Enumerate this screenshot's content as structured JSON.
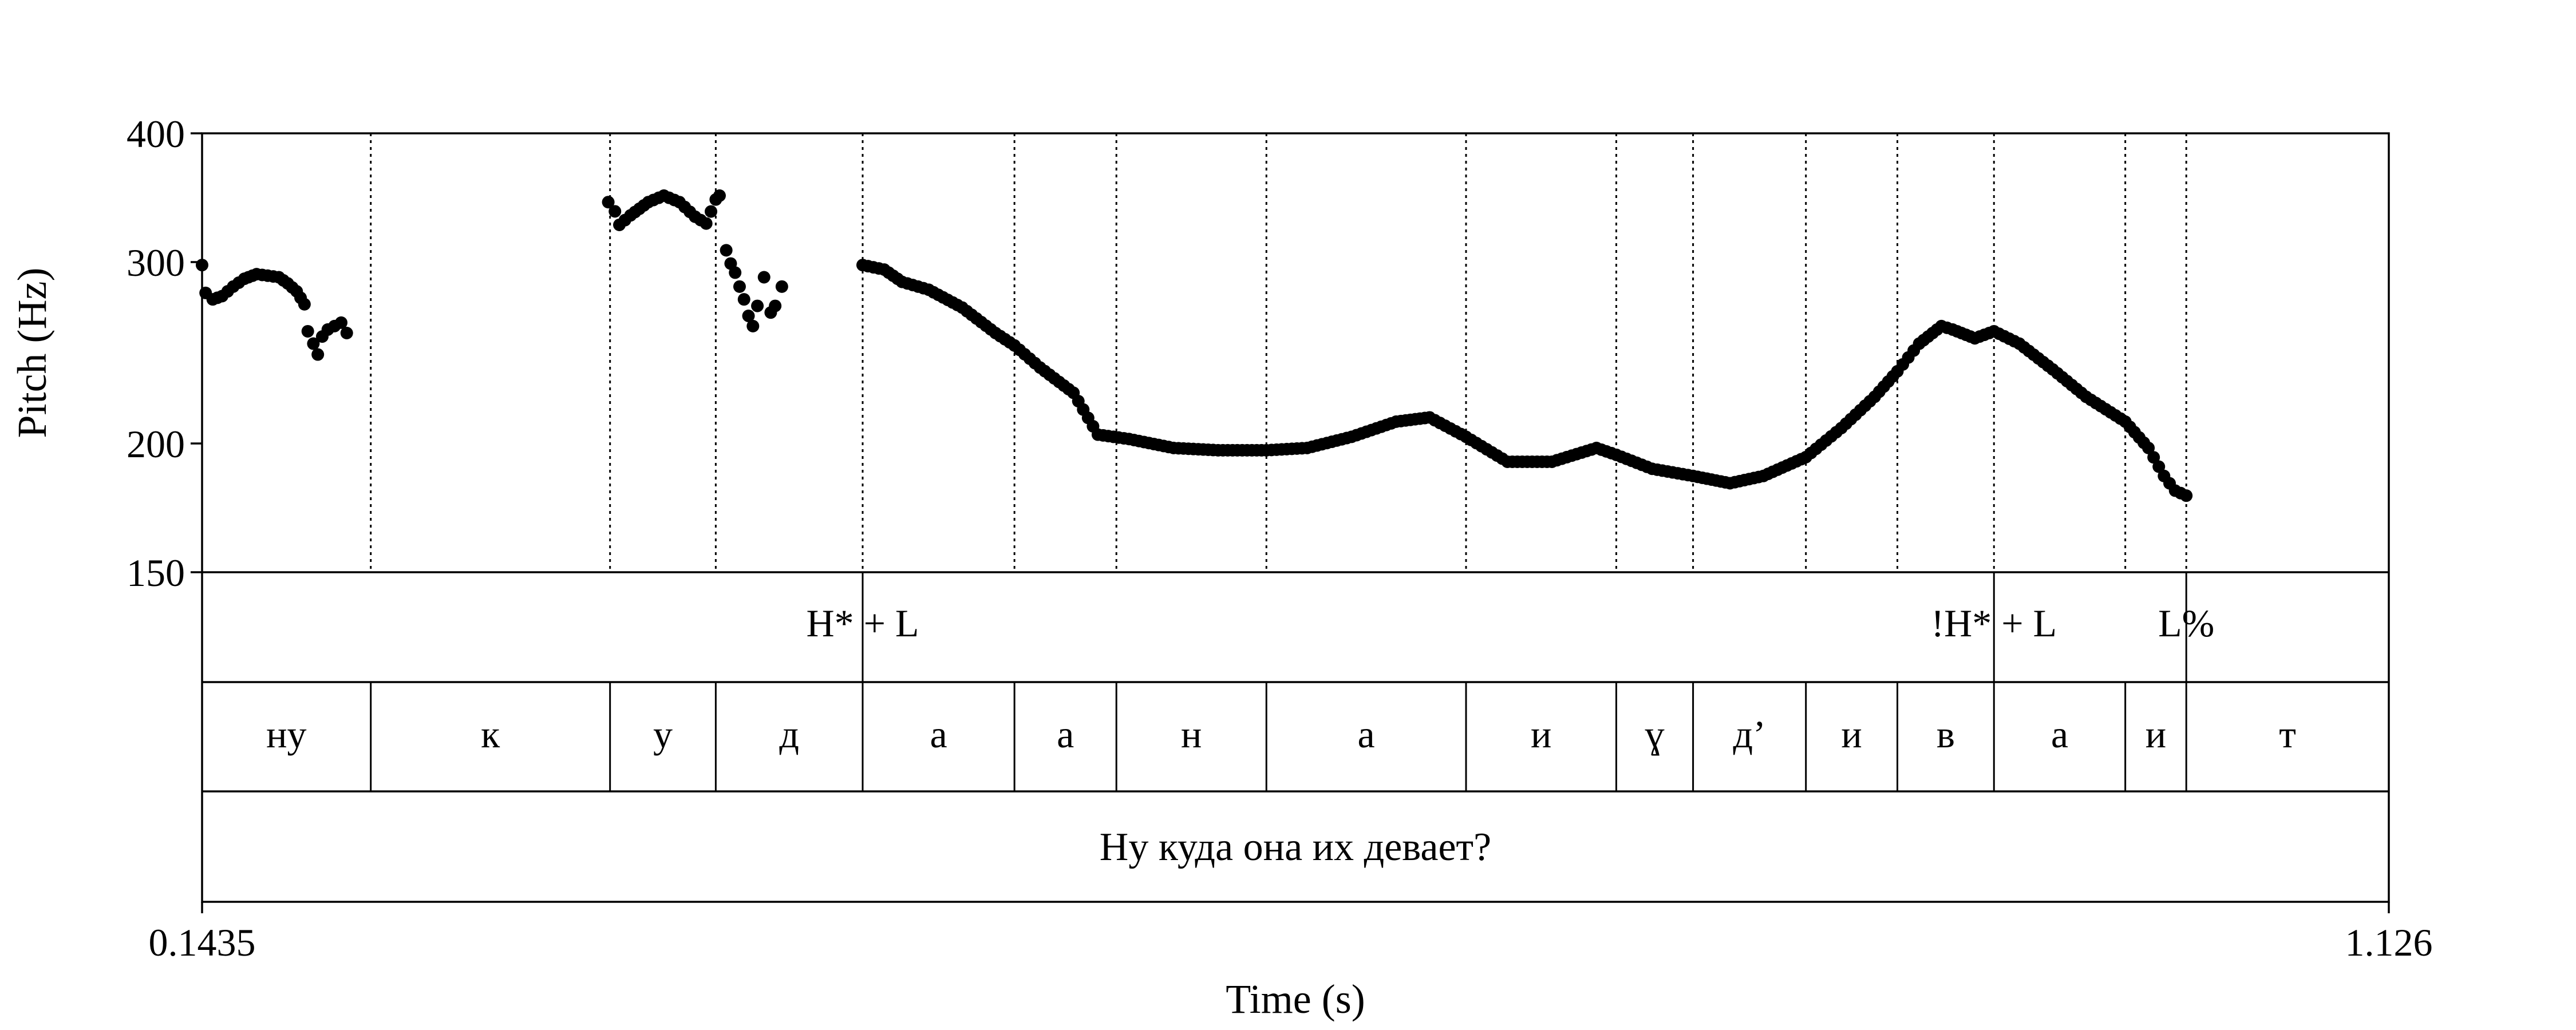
{
  "chart_data": {
    "type": "scatter",
    "ylabel": "Pitch (Hz)",
    "xlabel": "Time (s)",
    "xlim": [
      0.1435,
      1.126
    ],
    "ylim": [
      150,
      400
    ],
    "y_scale": "log",
    "x_tick_labels": [
      "0.1435",
      "1.126"
    ],
    "y_ticks": [
      150,
      200,
      300,
      400
    ],
    "y_tick_labels": [
      "150",
      "200",
      "300",
      "400"
    ],
    "boundaries": [
      0.2193,
      0.3268,
      0.3743,
      0.4403,
      0.5085,
      0.5543,
      0.6217,
      0.7114,
      0.7789,
      0.8134,
      0.8641,
      0.9052,
      0.9486,
      1.0076,
      1.035
    ],
    "tone_tier": [
      {
        "time": 0.4403,
        "label": "H* + L"
      },
      {
        "time": 0.9486,
        "label": "!H* + L"
      },
      {
        "time": 1.035,
        "label": "L%"
      }
    ],
    "segment_tier": [
      "ну",
      "к",
      "у",
      "д",
      "а",
      "а",
      "н",
      "а",
      "и",
      "ɣ",
      "д’",
      "и",
      "в",
      "а",
      "и",
      "т"
    ],
    "sentence": "Ну куда она их девает?",
    "pitch_curves": [
      {
        "name": "",
        "x": [
          0.1435,
          0.1451,
          0.1483,
          0.1525,
          0.1575,
          0.1625,
          0.168,
          0.173,
          0.178,
          0.182,
          0.186,
          0.1895
        ],
        "y": [
          298,
          280,
          276,
          278,
          284,
          289,
          292,
          291,
          290,
          286,
          281,
          273
        ]
      },
      {
        "name": "",
        "x": [
          0.191,
          0.1935,
          0.1955,
          0.1975,
          0.2,
          0.203,
          0.206,
          0.2085
        ],
        "y": [
          257,
          250,
          244,
          254,
          258,
          260,
          262,
          256
        ]
      },
      {
        "name": "",
        "x": [
          0.326,
          0.329,
          0.331,
          0.336,
          0.344,
          0.351,
          0.358,
          0.365,
          0.37,
          0.3743,
          0.376
        ],
        "y": [
          343,
          336,
          326,
          333,
          343,
          348,
          343,
          332,
          327,
          345,
          348
        ]
      },
      {
        "name": "",
        "x": [
          0.379,
          0.381,
          0.383,
          0.385,
          0.387,
          0.389,
          0.391,
          0.393,
          0.396,
          0.399,
          0.401,
          0.404
        ],
        "y": [
          308,
          299,
          293,
          284,
          276,
          266,
          260,
          272,
          290,
          268,
          272,
          284
        ]
      },
      {
        "name": "",
        "x": [
          0.4403,
          0.45,
          0.458,
          0.47,
          0.485,
          0.5,
          0.5085,
          0.52,
          0.535,
          0.546,
          0.56,
          0.58,
          0.6,
          0.6217,
          0.64,
          0.66,
          0.68,
          0.695,
          0.7114,
          0.73,
          0.75,
          0.77,
          0.7789,
          0.795,
          0.8134,
          0.83,
          0.845,
          0.8641,
          0.88,
          0.895,
          0.9052,
          0.915,
          0.925,
          0.93,
          0.94,
          0.9486,
          0.96,
          0.975,
          0.99,
          1.0076,
          1.018,
          1.025,
          1.03,
          1.035
        ],
        "y": [
          298,
          295,
          287,
          282,
          271,
          256,
          249,
          237,
          224,
          204,
          202,
          198,
          197,
          197,
          198,
          203,
          210,
          212,
          203,
          192,
          192,
          198,
          195,
          189,
          186,
          183,
          186,
          194,
          207,
          222,
          235,
          250,
          260,
          258,
          253,
          257,
          250,
          236,
          222,
          210,
          198,
          186,
          180,
          178
        ]
      }
    ]
  }
}
